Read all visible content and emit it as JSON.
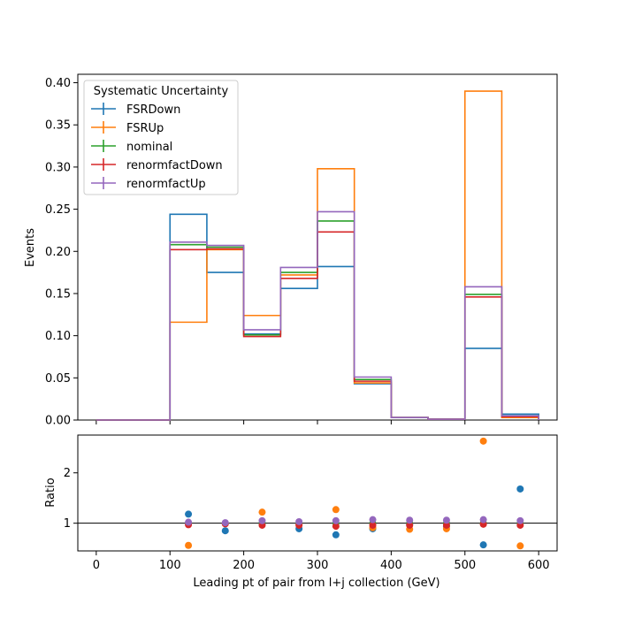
{
  "chart_data": [
    {
      "type": "step",
      "title": "",
      "ylabel": "Events",
      "xlim": [
        -25,
        625
      ],
      "ylim": [
        0,
        0.41
      ],
      "yticks": [
        0.0,
        0.05,
        0.1,
        0.15,
        0.2,
        0.25,
        0.3,
        0.35,
        0.4
      ],
      "ytick_labels": [
        "0.00",
        "0.05",
        "0.10",
        "0.15",
        "0.20",
        "0.25",
        "0.30",
        "0.35",
        "0.40"
      ],
      "bin_edges": [
        0,
        50,
        100,
        150,
        200,
        250,
        300,
        350,
        400,
        450,
        500,
        550,
        600
      ],
      "legend": {
        "title": "Systematic Uncertainty",
        "placement": "top-left"
      },
      "series": [
        {
          "name": "FSRDown",
          "color": "#1f77b4",
          "values": [
            0,
            0,
            0.244,
            0.175,
            0.102,
            0.156,
            0.182,
            0.043,
            0.003,
            0.001,
            0.085,
            0.007
          ]
        },
        {
          "name": "FSRUp",
          "color": "#ff7f0e",
          "values": [
            0,
            0,
            0.116,
            0.202,
            0.124,
            0.172,
            0.298,
            0.044,
            0.003,
            0.001,
            0.39,
            0.003
          ]
        },
        {
          "name": "nominal",
          "color": "#2ca02c",
          "values": [
            0,
            0,
            0.208,
            0.205,
            0.101,
            0.175,
            0.236,
            0.048,
            0.003,
            0.001,
            0.149,
            0.005
          ]
        },
        {
          "name": "renormfactDown",
          "color": "#d62728",
          "values": [
            0,
            0,
            0.202,
            0.203,
            0.099,
            0.168,
            0.223,
            0.046,
            0.003,
            0.001,
            0.146,
            0.004
          ]
        },
        {
          "name": "renormfactUp",
          "color": "#9467bd",
          "values": [
            0,
            0,
            0.211,
            0.207,
            0.107,
            0.181,
            0.247,
            0.051,
            0.003,
            0.001,
            0.158,
            0.005
          ]
        }
      ]
    },
    {
      "type": "scatter",
      "xlabel": "Leading pt of pair from l+j collection (GeV)",
      "ylabel": "Ratio",
      "xlim": [
        -25,
        625
      ],
      "ylim": [
        0.45,
        2.75
      ],
      "xticks": [
        0,
        100,
        200,
        300,
        400,
        500,
        600
      ],
      "xtick_labels": [
        "0",
        "100",
        "200",
        "300",
        "400",
        "500",
        "600"
      ],
      "yticks": [
        1,
        2
      ],
      "ytick_labels": [
        "1",
        "2"
      ],
      "reference_line": 1,
      "x": [
        125,
        175,
        225,
        275,
        325,
        375,
        425,
        475,
        525,
        575
      ],
      "series": [
        {
          "name": "FSRDown",
          "color": "#1f77b4",
          "values": [
            1.18,
            0.85,
            1.0,
            0.89,
            0.77,
            0.89,
            0.97,
            0.94,
            0.57,
            1.68
          ]
        },
        {
          "name": "FSRUp",
          "color": "#ff7f0e",
          "values": [
            0.56,
            0.99,
            1.22,
            0.98,
            1.27,
            0.91,
            0.88,
            0.89,
            2.63,
            0.55
          ]
        },
        {
          "name": "nominal",
          "color": "#2ca02c",
          "values": [
            1.0,
            1.0,
            1.0,
            1.0,
            1.0,
            1.0,
            1.0,
            1.0,
            1.0,
            1.0
          ]
        },
        {
          "name": "renormfactDown",
          "color": "#d62728",
          "values": [
            0.97,
            0.99,
            0.96,
            0.96,
            0.94,
            0.96,
            0.96,
            0.96,
            0.98,
            0.96
          ]
        },
        {
          "name": "renormfactUp",
          "color": "#9467bd",
          "values": [
            1.02,
            1.01,
            1.05,
            1.03,
            1.05,
            1.07,
            1.06,
            1.06,
            1.07,
            1.05
          ]
        }
      ]
    }
  ]
}
